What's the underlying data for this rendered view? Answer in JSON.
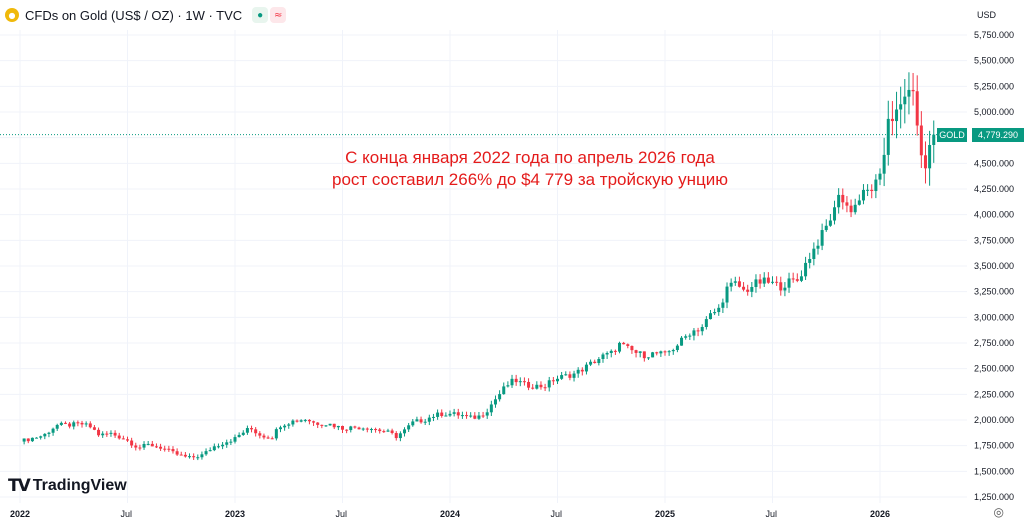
{
  "header": {
    "symbol_title": "CFDs on Gold (US$ / OZ) · 1W · TVC",
    "icon_market": "●",
    "icon_delay": "≈"
  },
  "currency": "USD",
  "price_label": "4,779.290",
  "symbol_label": "GOLD",
  "annotation": {
    "line1": "С конца января 2022 года по апрель 2026 года",
    "line2": "рост составил 266% до $4 779 за тройскую унцию"
  },
  "logo": {
    "mark": "TV",
    "text": "TradingView"
  },
  "chart_data": {
    "type": "candlestick",
    "title": "CFDs on Gold (US$ / OZ) · 1W · TVC",
    "ylabel": "USD",
    "ylim": [
      1190,
      5870
    ],
    "y_ticks": [
      {
        "v": 1250,
        "label": "1,250.000"
      },
      {
        "v": 1500,
        "label": "1,500.000"
      },
      {
        "v": 1750,
        "label": "1,750.000"
      },
      {
        "v": 2000,
        "label": "2,000.000"
      },
      {
        "v": 2250,
        "label": "2,250.000"
      },
      {
        "v": 2500,
        "label": "2,500.000"
      },
      {
        "v": 2750,
        "label": "2,750.000"
      },
      {
        "v": 3000,
        "label": "3,000.000"
      },
      {
        "v": 3250,
        "label": "3,250.000"
      },
      {
        "v": 3500,
        "label": "3,500.000"
      },
      {
        "v": 3750,
        "label": "3,750.000"
      },
      {
        "v": 4000,
        "label": "4,000.000"
      },
      {
        "v": 4250,
        "label": "4,250.000"
      },
      {
        "v": 4500,
        "label": "4,500.000"
      },
      {
        "v": 4750,
        "label": "4,750.000"
      },
      {
        "v": 5000,
        "label": "5,000.000"
      },
      {
        "v": 5250,
        "label": "5,250.000"
      },
      {
        "v": 5500,
        "label": "5,500.000"
      },
      {
        "v": 5750,
        "label": "5,750.000"
      }
    ],
    "x_ticks": [
      {
        "t": 0,
        "label": "2022"
      },
      {
        "t": 0.5,
        "label": "Jul"
      },
      {
        "t": 1,
        "label": "2023"
      },
      {
        "t": 1.5,
        "label": "Jul"
      },
      {
        "t": 2,
        "label": "2024"
      },
      {
        "t": 2.5,
        "label": "Jul"
      },
      {
        "t": 3,
        "label": "2025"
      },
      {
        "t": 3.5,
        "label": "Jul"
      },
      {
        "t": 4,
        "label": "2026"
      }
    ],
    "x_range_years": [
      0,
      4.55
    ],
    "last_price": 4779.29,
    "colors": {
      "up": "#089981",
      "down": "#f23645"
    },
    "price_anchors": [
      [
        0.0,
        1790
      ],
      [
        0.05,
        1820
      ],
      [
        0.11,
        1850
      ],
      [
        0.17,
        1950
      ],
      [
        0.22,
        1950
      ],
      [
        0.29,
        1960
      ],
      [
        0.33,
        1930
      ],
      [
        0.37,
        1850
      ],
      [
        0.42,
        1870
      ],
      [
        0.47,
        1830
      ],
      [
        0.5,
        1800
      ],
      [
        0.55,
        1730
      ],
      [
        0.6,
        1760
      ],
      [
        0.66,
        1730
      ],
      [
        0.71,
        1680
      ],
      [
        0.75,
        1650
      ],
      [
        0.79,
        1630
      ],
      [
        0.85,
        1660
      ],
      [
        0.9,
        1740
      ],
      [
        0.96,
        1790
      ],
      [
        1.0,
        1820
      ],
      [
        1.03,
        1870
      ],
      [
        1.07,
        1920
      ],
      [
        1.12,
        1850
      ],
      [
        1.17,
        1830
      ],
      [
        1.21,
        1950
      ],
      [
        1.27,
        1990
      ],
      [
        1.33,
        2010
      ],
      [
        1.37,
        1970
      ],
      [
        1.44,
        1960
      ],
      [
        1.5,
        1920
      ],
      [
        1.56,
        1930
      ],
      [
        1.62,
        1925
      ],
      [
        1.67,
        1900
      ],
      [
        1.71,
        1880
      ],
      [
        1.75,
        1840
      ],
      [
        1.79,
        1900
      ],
      [
        1.83,
        1980
      ],
      [
        1.88,
        2000
      ],
      [
        1.92,
        2040
      ],
      [
        1.96,
        2060
      ],
      [
        2.0,
        2060
      ],
      [
        2.05,
        2050
      ],
      [
        2.09,
        2020
      ],
      [
        2.13,
        2030
      ],
      [
        2.17,
        2090
      ],
      [
        2.21,
        2200
      ],
      [
        2.26,
        2330
      ],
      [
        2.3,
        2390
      ],
      [
        2.35,
        2340
      ],
      [
        2.4,
        2330
      ],
      [
        2.44,
        2330
      ],
      [
        2.48,
        2390
      ],
      [
        2.52,
        2420
      ],
      [
        2.58,
        2450
      ],
      [
        2.62,
        2500
      ],
      [
        2.67,
        2570
      ],
      [
        2.71,
        2620
      ],
      [
        2.75,
        2650
      ],
      [
        2.79,
        2740
      ],
      [
        2.82,
        2700
      ],
      [
        2.87,
        2650
      ],
      [
        2.91,
        2630
      ],
      [
        2.95,
        2650
      ],
      [
        3.0,
        2640
      ],
      [
        3.04,
        2700
      ],
      [
        3.08,
        2780
      ],
      [
        3.12,
        2860
      ],
      [
        3.17,
        2900
      ],
      [
        3.21,
        3020
      ],
      [
        3.25,
        3080
      ],
      [
        3.29,
        3290
      ],
      [
        3.33,
        3330
      ],
      [
        3.37,
        3250
      ],
      [
        3.42,
        3330
      ],
      [
        3.46,
        3350
      ],
      [
        3.5,
        3330
      ],
      [
        3.54,
        3300
      ],
      [
        3.58,
        3350
      ],
      [
        3.62,
        3360
      ],
      [
        3.66,
        3550
      ],
      [
        3.7,
        3690
      ],
      [
        3.75,
        3880
      ],
      [
        3.79,
        4050
      ],
      [
        3.81,
        4250
      ],
      [
        3.83,
        4100
      ],
      [
        3.87,
        4050
      ],
      [
        3.92,
        4200
      ],
      [
        3.96,
        4250
      ],
      [
        4.0,
        4350
      ],
      [
        4.02,
        4600
      ],
      [
        4.04,
        4990
      ],
      [
        4.06,
        4940
      ],
      [
        4.1,
        5050
      ],
      [
        4.14,
        5280
      ],
      [
        4.17,
        4980
      ],
      [
        4.19,
        4550
      ],
      [
        4.21,
        4450
      ],
      [
        4.23,
        4660
      ],
      [
        4.25,
        4779.29
      ]
    ]
  }
}
